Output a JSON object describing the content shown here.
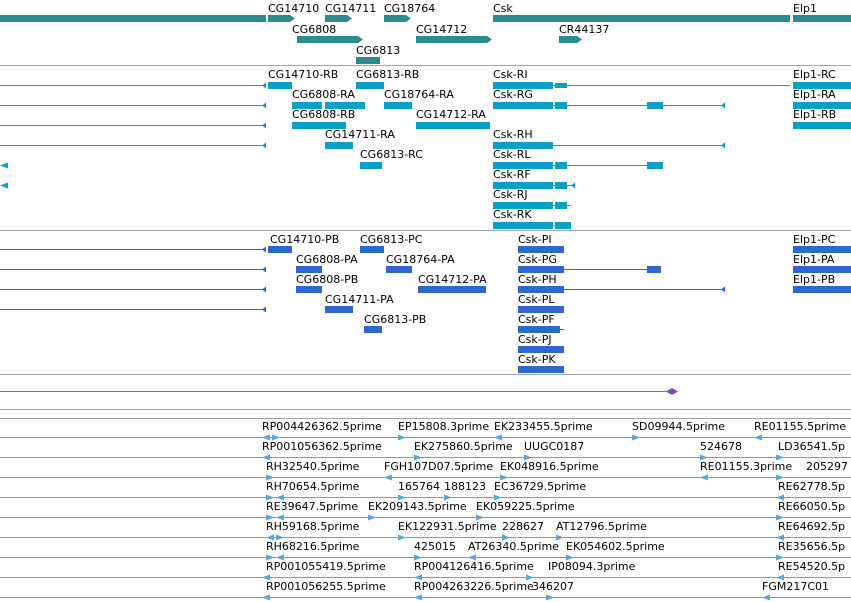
{
  "viewer": {
    "colors": {
      "gene": "#2e8b8b",
      "transcript": "#0aa0c4",
      "protein": "#2f67d1",
      "est": "#5aa6d8",
      "divider": "#9aa7b4",
      "purple": "#7b4fb0",
      "purple_line": "#8e63c9"
    }
  },
  "tracks": {
    "genes": {
      "labels": [
        "CG14710",
        "CG14711",
        "CG18764",
        "Csk",
        "Elp1",
        "CG6808",
        "CG14712",
        "CR44137",
        "CG6813"
      ]
    },
    "transcripts": {
      "labels": [
        "CG14710-RB",
        "CG6813-RB",
        "Csk-RI",
        "Elp1-RC",
        "CG6808-RA",
        "CG18764-RA",
        "Csk-RG",
        "Elp1-RA",
        "CG6808-RB",
        "CG14712-RA",
        "Elp1-RB",
        "CG14711-RA",
        "Csk-RH",
        "CG6813-RC",
        "Csk-RL",
        "Csk-RF",
        "Csk-RJ",
        "Csk-RK"
      ]
    },
    "proteins": {
      "labels": [
        "CG14710-PB",
        "CG6813-PC",
        "Csk-PI",
        "Elp1-PC",
        "CG6808-PA",
        "CG18764-PA",
        "Csk-PG",
        "Elp1-PA",
        "CG6808-PB",
        "CG14712-PA",
        "Csk-PH",
        "Elp1-PB",
        "CG14711-PA",
        "Csk-PL",
        "CG6813-PB",
        "Csk-PF",
        "Csk-PJ",
        "Csk-PK"
      ]
    },
    "ests": {
      "labels": [
        "RP004426362.5prime",
        "EP15808.3prime",
        "EK233455.5prime",
        "SD09944.5prime",
        "RE01155.5prime",
        "RP001056362.5prime",
        "EK275860.5prime",
        "UUGC0187",
        "524678",
        "LD36541.5p",
        "RH32540.5prime",
        "FGH107D07.5prime",
        "EK048916.5prime",
        "RE01155.3prime",
        "205297",
        "RH70654.5prime",
        "165764",
        "188123",
        "EC36729.5prime",
        "RE62778.5p",
        "RE39647.5prime",
        "EK209143.5prime",
        "EK059225.5prime",
        "RE66050.5p",
        "RH59168.5prime",
        "EK122931.5prime",
        "228627",
        "AT12796.5prime",
        "RE64692.5p",
        "RH68216.5prime",
        "425015",
        "AT26340.5prime",
        "EK054602.5prime",
        "RE35656.5p",
        "RP001055419.5prime",
        "RP004126416.5prime",
        "IP08094.3prime",
        "RE54520.5p",
        "RP001056255.5prime",
        "RP004263226.5prime",
        "346207",
        "FGM217C01"
      ]
    }
  }
}
